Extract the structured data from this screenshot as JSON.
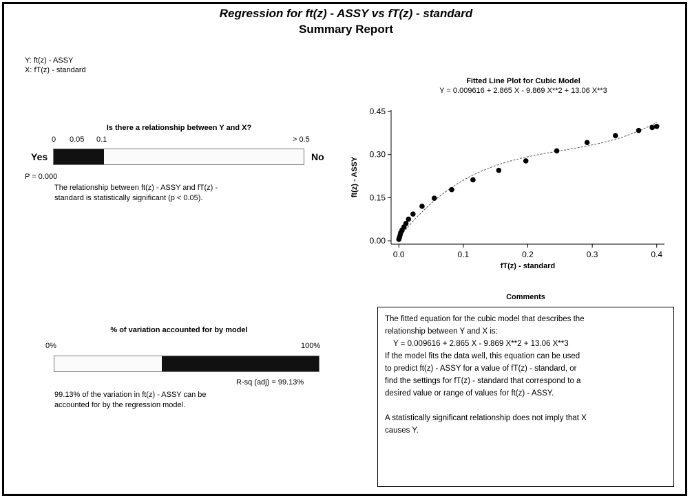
{
  "report": {
    "title": "Regression for ft(z) - ASSY vs fT(z) - standard",
    "subtitle": "Summary Report",
    "y_var": "Y: ft(z) - ASSY",
    "x_var": "X: fT(z) - standard"
  },
  "relationship": {
    "heading": "Is there a relationship between Y and X?",
    "ticks": [
      "0",
      "0.05",
      "0.1",
      "> 0.5"
    ],
    "yes_label": "Yes",
    "no_label": "No",
    "p_value_text": "P = 0.000",
    "p_value": 0.0,
    "fill_fraction": 0.2,
    "conclusion_line1": "The relationship between ft(z) - ASSY and fT(z) -",
    "conclusion_line2": "standard is statistically significant (p < 0.05)."
  },
  "variation": {
    "heading": "% of variation accounted for by model",
    "left_label": "0%",
    "right_label": "100%",
    "rsq_text": "R-sq (adj) = 99.13%",
    "rsq_value": 99.13,
    "line1": "99.13% of the variation in ft(z) - ASSY can be",
    "line2": "accounted for by the regression model."
  },
  "plot": {
    "title": "Fitted Line Plot for Cubic Model",
    "equation": "Y = 0.009616 + 2.865 X - 9.869 X**2 + 13.06 X**3"
  },
  "comments": {
    "heading": "Comments",
    "line1": "The fitted equation for the cubic model that describes the",
    "line2": "relationship between Y and X is:",
    "equation": "Y = 0.009616 + 2.865 X - 9.869 X**2 + 13.06 X**3",
    "line3": "If the model fits the data well, this equation can be used",
    "line4": "to predict ft(z) - ASSY for a value of fT(z) - standard, or",
    "line5": "find the settings for fT(z) - standard that correspond to a",
    "line6": "desired value or range of values for ft(z) - ASSY.",
    "line7": "A statistically significant relationship does not imply that X",
    "line8": "causes Y."
  },
  "chart_data": {
    "type": "scatter",
    "title": "Fitted Line Plot for Cubic Model",
    "subtitle": "Y = 0.009616 + 2.865 X - 9.869 X**2 + 13.06 X**3",
    "xlabel": "fT(z) - standard",
    "ylabel": "ft(z) - ASSY",
    "xlim": [
      -0.012,
      0.412
    ],
    "ylim": [
      -0.012,
      0.455
    ],
    "xticks": [
      "0.0",
      "0.1",
      "0.2",
      "0.3",
      "0.4"
    ],
    "yticks": [
      "0.00",
      "0.15",
      "0.30",
      "0.45"
    ],
    "grid": false,
    "fit": {
      "intercept": 0.009616,
      "b1": 2.865,
      "b2": -9.869,
      "b3": 13.06
    },
    "points": [
      {
        "x": 0.0,
        "y": 0.005
      },
      {
        "x": 0.001,
        "y": 0.012
      },
      {
        "x": 0.002,
        "y": 0.02
      },
      {
        "x": 0.003,
        "y": 0.028
      },
      {
        "x": 0.005,
        "y": 0.037
      },
      {
        "x": 0.008,
        "y": 0.048
      },
      {
        "x": 0.011,
        "y": 0.06
      },
      {
        "x": 0.015,
        "y": 0.075
      },
      {
        "x": 0.022,
        "y": 0.093
      },
      {
        "x": 0.036,
        "y": 0.12
      },
      {
        "x": 0.055,
        "y": 0.148
      },
      {
        "x": 0.082,
        "y": 0.178
      },
      {
        "x": 0.115,
        "y": 0.212
      },
      {
        "x": 0.155,
        "y": 0.245
      },
      {
        "x": 0.197,
        "y": 0.278
      },
      {
        "x": 0.245,
        "y": 0.313
      },
      {
        "x": 0.292,
        "y": 0.342
      },
      {
        "x": 0.336,
        "y": 0.366
      },
      {
        "x": 0.372,
        "y": 0.384
      },
      {
        "x": 0.393,
        "y": 0.394
      },
      {
        "x": 0.4,
        "y": 0.398
      }
    ]
  }
}
